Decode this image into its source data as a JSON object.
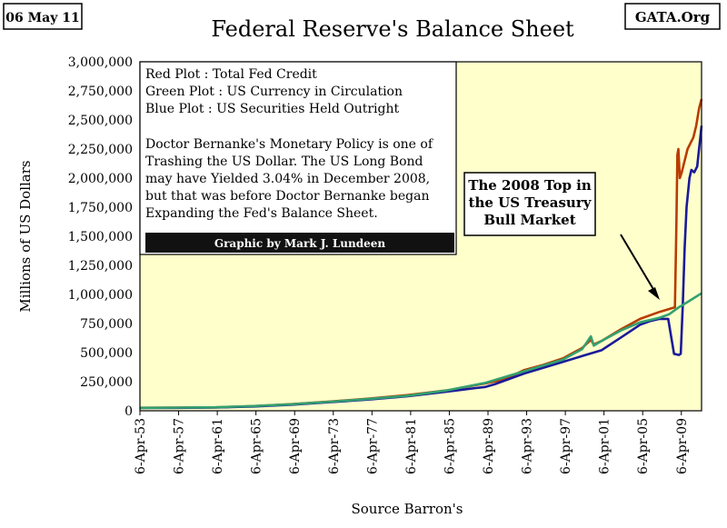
{
  "date_box": "06 May 11",
  "source_box": "GATA.Org",
  "footer": "Graphic by Mark J. Lundeen",
  "legend_lines": [
    "Red Plot    : Total Fed Credit",
    "Green Plot : US Currency in Circulation",
    "Blue Plot   : US Securities Held Outright"
  ],
  "note_lines": [
    "Doctor Bernanke's Monetary Policy is one of",
    "Trashing the US Dollar.  The US Long Bond",
    "may have Yielded 3.04% in December 2008,",
    "but that was before Doctor Bernanke began",
    "Expanding the Fed's Balance Sheet."
  ],
  "annotation_lines": [
    "The 2008 Top in",
    "the US Treasury",
    "Bull Market"
  ],
  "colors": {
    "plot_bg": "#ffffcc",
    "red": "#b83c00",
    "blue": "#1a1a99",
    "green": "#33a070",
    "frame": "#000000"
  },
  "chart_data": {
    "type": "line",
    "title": "Federal Reserve's Balance Sheet",
    "xlabel": "Source Barron's",
    "ylabel": "Millions of US Dollars",
    "ylim": [
      0,
      3000000
    ],
    "xlim": [
      1953.26,
      2011.35
    ],
    "grid": false,
    "y_ticks": [
      0,
      250000,
      500000,
      750000,
      1000000,
      1250000,
      1500000,
      1750000,
      2000000,
      2250000,
      2500000,
      2750000,
      3000000
    ],
    "y_tick_labels": [
      "0",
      "250,000",
      "500,000",
      "750,000",
      "1,000,000",
      "1,250,000",
      "1,500,000",
      "1,750,000",
      "2,000,000",
      "2,250,000",
      "2,500,000",
      "2,750,000",
      "3,000,000"
    ],
    "x_tick_labels": [
      "6-Apr-53",
      "6-Apr-57",
      "6-Apr-61",
      "6-Apr-65",
      "6-Apr-69",
      "6-Apr-73",
      "6-Apr-77",
      "6-Apr-81",
      "6-Apr-85",
      "6-Apr-89",
      "6-Apr-93",
      "6-Apr-97",
      "6-Apr-01",
      "6-Apr-05",
      "6-Apr-09"
    ],
    "x_tick_years": [
      1953.26,
      1957.26,
      1961.26,
      1965.26,
      1969.26,
      1973.26,
      1977.26,
      1981.26,
      1985.26,
      1989.26,
      1993.26,
      1997.26,
      2001.26,
      2005.26,
      2009.26
    ],
    "series": [
      {
        "color": "#b83c00",
        "points": [
          [
            1953.3,
            26000
          ],
          [
            1957,
            27000
          ],
          [
            1961,
            29000
          ],
          [
            1965,
            40000
          ],
          [
            1969,
            57000
          ],
          [
            1973,
            80000
          ],
          [
            1977,
            105000
          ],
          [
            1981,
            135000
          ],
          [
            1985,
            175000
          ],
          [
            1989,
            235000
          ],
          [
            1991,
            270000
          ],
          [
            1993,
            350000
          ],
          [
            1995,
            395000
          ],
          [
            1997,
            450000
          ],
          [
            1999,
            540000
          ],
          [
            1999.9,
            610000
          ],
          [
            2000.2,
            570000
          ],
          [
            2001,
            600000
          ],
          [
            2003,
            700000
          ],
          [
            2005,
            790000
          ],
          [
            2007,
            850000
          ],
          [
            2008.6,
            890000
          ],
          [
            2008.75,
            1600000
          ],
          [
            2008.85,
            2200000
          ],
          [
            2008.95,
            2250000
          ],
          [
            2009.1,
            2000000
          ],
          [
            2009.3,
            2050000
          ],
          [
            2009.6,
            2150000
          ],
          [
            2009.9,
            2250000
          ],
          [
            2010.2,
            2300000
          ],
          [
            2010.5,
            2350000
          ],
          [
            2010.8,
            2450000
          ],
          [
            2011.1,
            2600000
          ],
          [
            2011.35,
            2680000
          ]
        ]
      },
      {
        "color": "#1a1a99",
        "points": [
          [
            1953.3,
            24000
          ],
          [
            1957,
            25000
          ],
          [
            1961,
            27000
          ],
          [
            1965,
            37000
          ],
          [
            1969,
            52000
          ],
          [
            1973,
            74000
          ],
          [
            1977,
            97000
          ],
          [
            1981,
            125000
          ],
          [
            1985,
            165000
          ],
          [
            1988,
            195000
          ],
          [
            1989,
            205000
          ],
          [
            1990,
            230000
          ],
          [
            1993,
            320000
          ],
          [
            1995,
            370000
          ],
          [
            1997,
            420000
          ],
          [
            1999,
            470000
          ],
          [
            2001,
            520000
          ],
          [
            2003,
            630000
          ],
          [
            2005,
            740000
          ],
          [
            2006,
            770000
          ],
          [
            2007,
            790000
          ],
          [
            2007.9,
            790000
          ],
          [
            2008.2,
            640000
          ],
          [
            2008.5,
            490000
          ],
          [
            2009,
            480000
          ],
          [
            2009.2,
            490000
          ],
          [
            2009.4,
            900000
          ],
          [
            2009.6,
            1400000
          ],
          [
            2009.8,
            1750000
          ],
          [
            2010.1,
            2000000
          ],
          [
            2010.3,
            2070000
          ],
          [
            2010.6,
            2050000
          ],
          [
            2010.9,
            2100000
          ],
          [
            2011.35,
            2450000
          ]
        ]
      },
      {
        "color": "#33a070",
        "points": [
          [
            1953.3,
            25000
          ],
          [
            1957,
            27000
          ],
          [
            1961,
            30000
          ],
          [
            1965,
            41000
          ],
          [
            1969,
            56000
          ],
          [
            1973,
            78000
          ],
          [
            1977,
            102000
          ],
          [
            1981,
            130000
          ],
          [
            1985,
            175000
          ],
          [
            1989,
            240000
          ],
          [
            1993,
            340000
          ],
          [
            1995,
            390000
          ],
          [
            1997,
            440000
          ],
          [
            1999,
            530000
          ],
          [
            1999.9,
            640000
          ],
          [
            2000.2,
            560000
          ],
          [
            2001,
            600000
          ],
          [
            2003,
            690000
          ],
          [
            2005,
            760000
          ],
          [
            2007,
            800000
          ],
          [
            2008,
            830000
          ],
          [
            2009,
            890000
          ],
          [
            2010,
            940000
          ],
          [
            2011.35,
            1010000
          ]
        ]
      }
    ]
  }
}
